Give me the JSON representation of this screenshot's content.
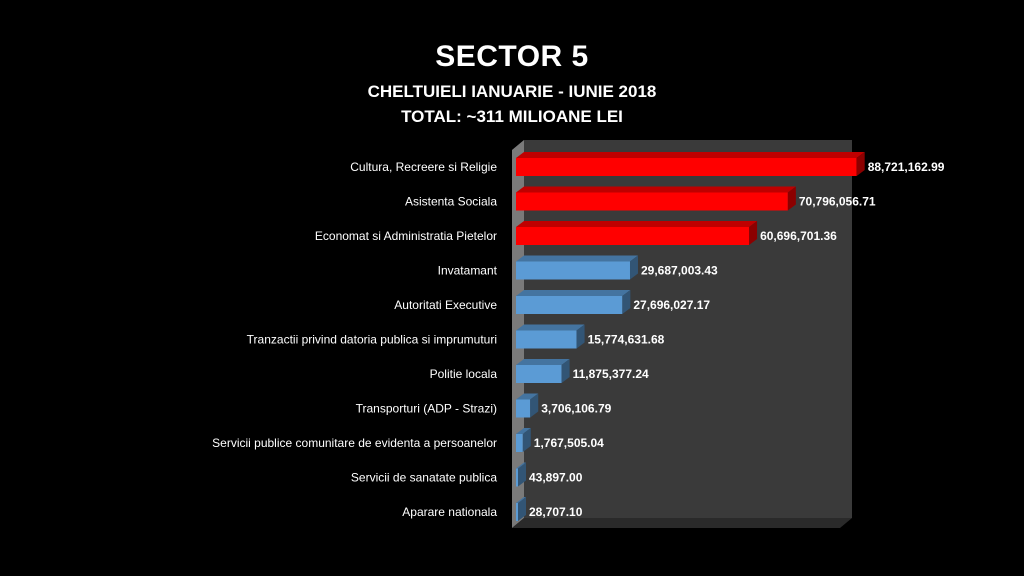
{
  "header": {
    "title": "SECTOR 5",
    "subtitle": "CHELTUIELI IANUARIE - IUNIE 2018",
    "total": "TOTAL: ~311 MILIOANE LEI"
  },
  "colors": {
    "highlight_bar": "#ff0000",
    "normal_bar": "#5b9bd5",
    "plot_back": "#3a3a3a",
    "background": "#000000"
  },
  "chart_data": {
    "type": "bar",
    "orientation": "horizontal",
    "style": "3d",
    "categories": [
      "Cultura, Recreere si Religie",
      "Asistenta Sociala",
      "Economat si Administratia Pietelor",
      "Invatamant",
      "Autoritati Executive",
      "Tranzactii privind datoria publica si imprumuturi",
      "Politie locala",
      "Transporturi (ADP - Strazi)",
      "Servicii publice comunitare de evidenta a persoanelor",
      "Servicii de sanatate publica",
      "Aparare nationala"
    ],
    "values": [
      88721162.99,
      70796056.71,
      60696701.36,
      29687003.43,
      27696027.17,
      15774631.68,
      11875377.24,
      3706106.79,
      1767505.04,
      43897.0,
      28707.1
    ],
    "data_labels": [
      "88,721,162.99",
      "70,796,056.71",
      "60,696,701.36",
      "29,687,003.43",
      "27,696,027.17",
      "15,774,631.68",
      "11,875,377.24",
      "3,706,106.79",
      "1,767,505.04",
      "43,897.00",
      "28,707.10"
    ],
    "highlighted": [
      true,
      true,
      true,
      false,
      false,
      false,
      false,
      false,
      false,
      false,
      false
    ],
    "xlim": [
      0,
      100000000
    ],
    "grid": false,
    "legend": "none",
    "axes_visible": false
  }
}
